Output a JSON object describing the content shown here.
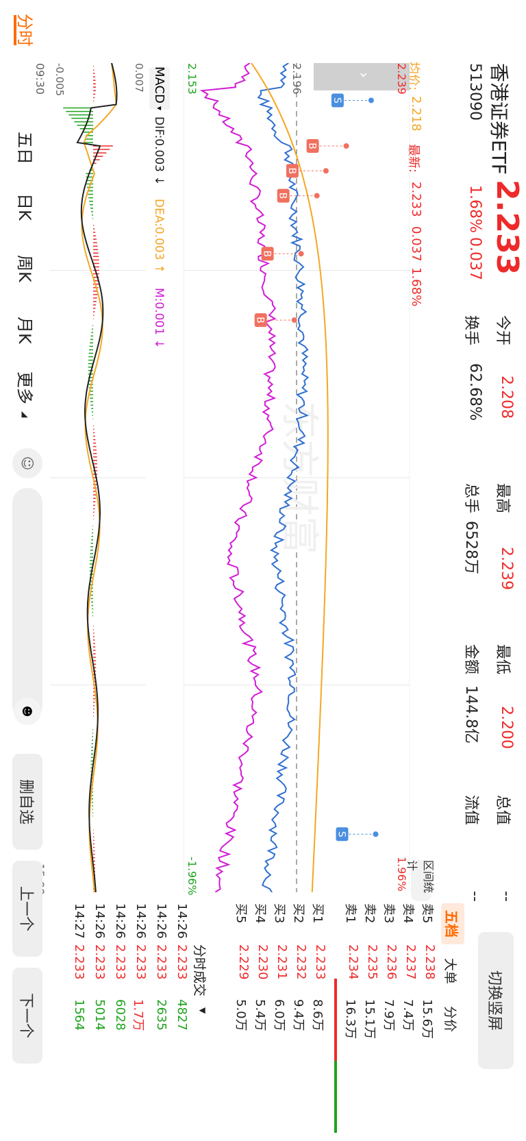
{
  "stock": {
    "name": "香港证券ETF",
    "price": "2.233",
    "code": "513090",
    "change_pct": "1.68%",
    "change": "0.037"
  },
  "stats": [
    {
      "label": "今开",
      "value": "2.208",
      "color": "red"
    },
    {
      "label": "最高",
      "value": "2.239",
      "color": "red"
    },
    {
      "label": "最低",
      "value": "2.200",
      "color": "red"
    },
    {
      "label": "总值",
      "value": "--",
      "color": "dark"
    },
    {
      "label": "换手",
      "value": "62.68%",
      "color": "dark"
    },
    {
      "label": "总手",
      "value": "6528万",
      "color": "dark"
    },
    {
      "label": "金额",
      "value": "144.8亿",
      "color": "dark"
    },
    {
      "label": "流值",
      "value": "--",
      "color": "dark"
    }
  ],
  "chart_header": {
    "avg_label": "均价:",
    "avg_value": "2.218",
    "latest_label": "最新:",
    "latest_value": "2.233",
    "latest_change": "0.037",
    "latest_pct": "1.68%"
  },
  "axis": {
    "top_price": "2.239",
    "ref_price": "2.196",
    "bottom_price": "2.153",
    "top_pct": "1.96%",
    "bottom_pct": "-1.96%",
    "time_start": "09:30",
    "time_end": "15:00",
    "range_stats_label": "区间统计"
  },
  "watermark": "东方财富",
  "macd": {
    "selector": "MACD",
    "dif": "DIF:0.003 ↓",
    "dea": "DEA:0.003 ↑",
    "m": "M:0.001 ↓",
    "top": "0.007",
    "bottom": "-0.005"
  },
  "markers": {
    "buy": "B",
    "sell": "S"
  },
  "orderbook_tabs": [
    "五档",
    "大单",
    "分价"
  ],
  "switch_label": "切换竖屏",
  "orderbook": {
    "sell": [
      {
        "label": "卖5",
        "price": "2.238",
        "vol": "15.6万"
      },
      {
        "label": "卖4",
        "price": "2.237",
        "vol": "7.4万"
      },
      {
        "label": "卖3",
        "price": "2.236",
        "vol": "7.9万"
      },
      {
        "label": "卖2",
        "price": "2.235",
        "vol": "15.1万"
      },
      {
        "label": "卖1",
        "price": "2.234",
        "vol": "16.3万"
      }
    ],
    "buy": [
      {
        "label": "买1",
        "price": "2.233",
        "vol": "8.6万"
      },
      {
        "label": "买2",
        "price": "2.232",
        "vol": "9.4万"
      },
      {
        "label": "买3",
        "price": "2.231",
        "vol": "6.0万"
      },
      {
        "label": "买4",
        "price": "2.230",
        "vol": "5.4万"
      },
      {
        "label": "买5",
        "price": "2.229",
        "vol": "5.0万"
      }
    ]
  },
  "trades_title": "分时成交",
  "trades": [
    {
      "time": "14:26",
      "price": "2.233",
      "vol": "4827",
      "dir": "green"
    },
    {
      "time": "14:26",
      "price": "2.233",
      "vol": "2635",
      "dir": "green"
    },
    {
      "time": "14:26",
      "price": "2.233",
      "vol": "1.7万",
      "dir": "red"
    },
    {
      "time": "14:26",
      "price": "2.233",
      "vol": "6028",
      "dir": "green"
    },
    {
      "time": "14:26",
      "price": "2.233",
      "vol": "5014",
      "dir": "green"
    },
    {
      "time": "14:27",
      "price": "2.233",
      "vol": "1564",
      "dir": "green"
    }
  ],
  "bottom_tabs": [
    "分时",
    "五日",
    "日K",
    "周K",
    "月K",
    "更多"
  ],
  "bottom_buttons": {
    "delete_watch": "删自选",
    "prev": "上一个",
    "next": "下一个"
  },
  "colors": {
    "up": "#ee2a2a",
    "down": "#1ea31e",
    "price_line": "#2f6fd0",
    "avg_line": "#f5a623",
    "compare_line": "#d21bd6",
    "accent": "#ff6a00"
  }
}
